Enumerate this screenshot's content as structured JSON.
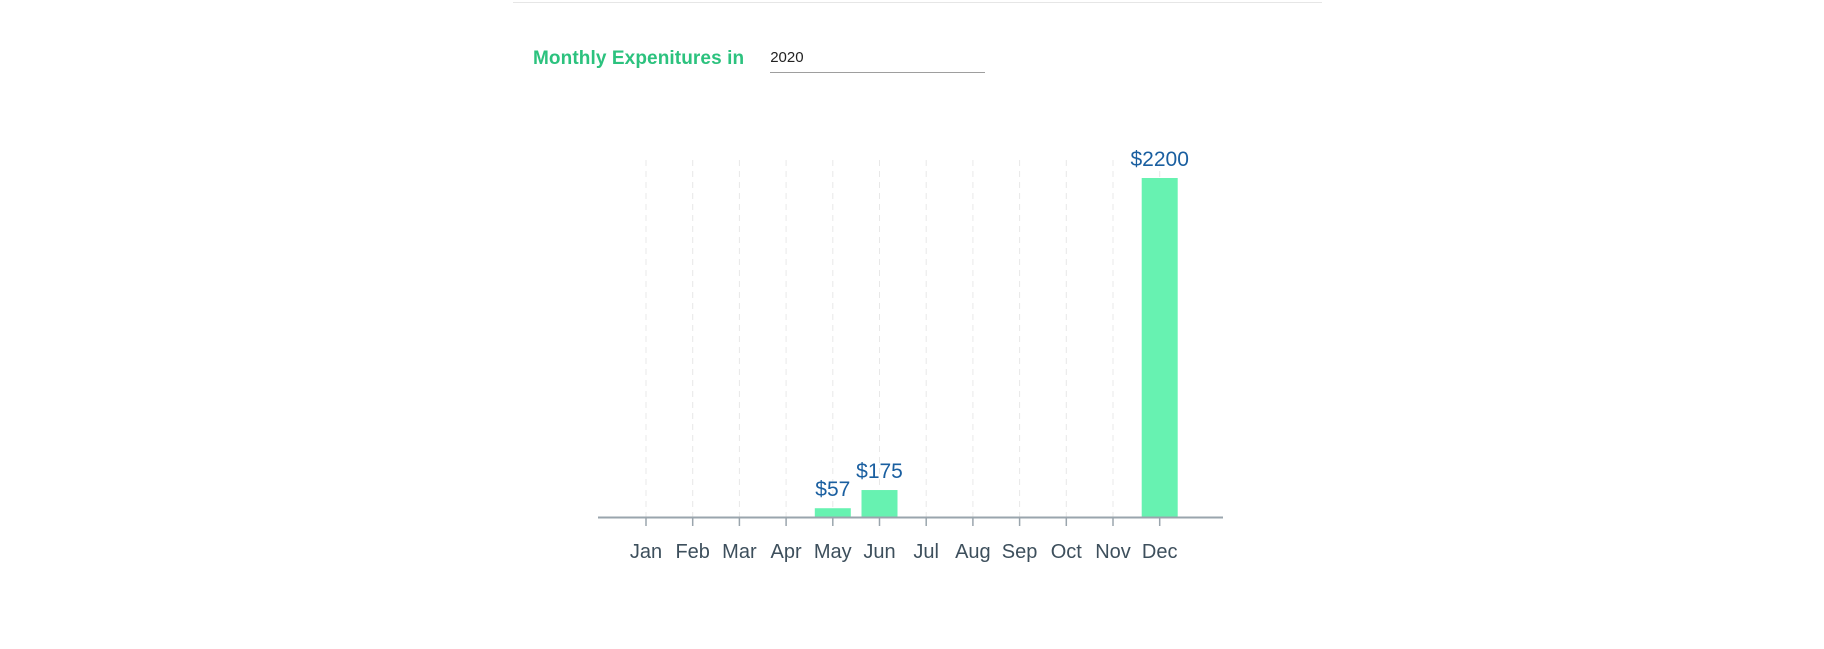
{
  "filter": {
    "label": "Monthly Expenitures in",
    "year_value": "2020"
  },
  "colors": {
    "label": "#2cc27e",
    "bar": "#67f2b1",
    "value_label": "#1a5fa0",
    "tick_label": "#3d4f5c",
    "axis": "#9aa5ad",
    "grid": "#e8e8e8"
  },
  "chart_data": {
    "type": "bar",
    "title": "",
    "xlabel": "",
    "ylabel": "",
    "categories": [
      "Jan",
      "Feb",
      "Mar",
      "Apr",
      "May",
      "Jun",
      "Jul",
      "Aug",
      "Sep",
      "Oct",
      "Nov",
      "Dec"
    ],
    "values": [
      0,
      0,
      0,
      0,
      57,
      175,
      0,
      0,
      0,
      0,
      0,
      2200
    ],
    "value_labels": [
      "",
      "",
      "",
      "",
      "$57",
      "$175",
      "",
      "",
      "",
      "",
      "",
      "$2200"
    ],
    "ylim": [
      0,
      2200
    ],
    "grid": "vertical-dashed",
    "legend": "none"
  }
}
